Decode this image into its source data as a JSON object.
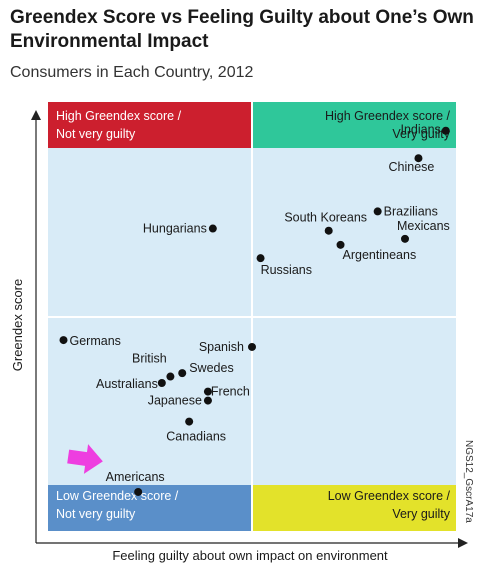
{
  "title_line1": "Greendex Score vs Feeling Guilty about One’s Own",
  "title_line2": "Environmental Impact",
  "subtitle": "Consumers in Each Country, 2012",
  "side_note": "NGS12_GscrA17a",
  "colors": {
    "plot_bg": "#d8ebf7",
    "quad_top_left": "#cc1f2e",
    "quad_top_right": "#2fc79a",
    "quad_bottom_left": "#5a8fc9",
    "quad_bottom_right": "#e3e22a",
    "grid_line": "#ffffff",
    "arrow": "#ee3ee0"
  },
  "chart_data": {
    "type": "scatter",
    "xlabel": "Feeling guilty about own impact on environment",
    "ylabel": "Greendex score",
    "quadrant_labels": {
      "top_left": [
        "High Greendex score /",
        "Not very guilty"
      ],
      "top_right": [
        "High Greendex score /",
        "Very guilty"
      ],
      "bottom_left": [
        "Low Greendex score /",
        "Not very guilty"
      ],
      "bottom_right": [
        "Low Greendex score /",
        "Very guilty"
      ]
    },
    "points": [
      {
        "name": "Indians",
        "x": 0.975,
        "y": 0.933
      },
      {
        "name": "Chinese",
        "x": 0.908,
        "y": 0.869
      },
      {
        "name": "Brazilians",
        "x": 0.808,
        "y": 0.745
      },
      {
        "name": "South Koreans",
        "x": 0.688,
        "y": 0.7
      },
      {
        "name": "Mexicans",
        "x": 0.875,
        "y": 0.681
      },
      {
        "name": "Argentineans",
        "x": 0.717,
        "y": 0.667
      },
      {
        "name": "Hungarians",
        "x": 0.404,
        "y": 0.705
      },
      {
        "name": "Russians",
        "x": 0.521,
        "y": 0.636
      },
      {
        "name": "Spanish",
        "x": 0.5,
        "y": 0.429
      },
      {
        "name": "Germans",
        "x": 0.038,
        "y": 0.445
      },
      {
        "name": "British",
        "x": 0.3,
        "y": 0.36
      },
      {
        "name": "Swedes",
        "x": 0.329,
        "y": 0.368
      },
      {
        "name": "Australians",
        "x": 0.279,
        "y": 0.345
      },
      {
        "name": "French",
        "x": 0.392,
        "y": 0.325
      },
      {
        "name": "Japanese",
        "x": 0.392,
        "y": 0.304
      },
      {
        "name": "Canadians",
        "x": 0.346,
        "y": 0.255
      },
      {
        "name": "Americans",
        "x": 0.221,
        "y": 0.091
      }
    ],
    "highlight": "Americans"
  }
}
